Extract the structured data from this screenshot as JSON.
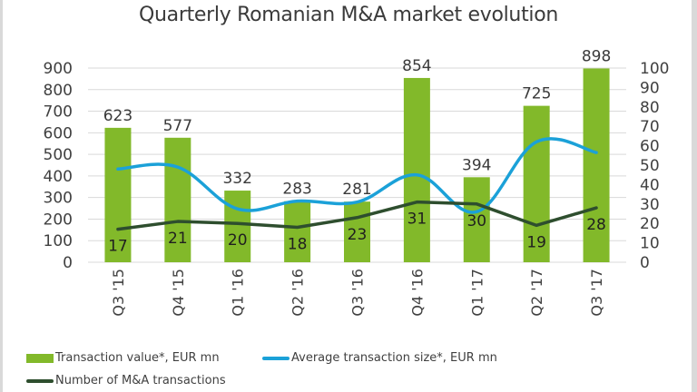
{
  "chart_data": {
    "type": "bar",
    "title": "Quarterly Romanian M&A market evolution",
    "categories": [
      "Q3 '15",
      "Q4 '15",
      "Q1 '16",
      "Q2 '16",
      "Q3 '16",
      "Q4 '16",
      "Q1 '17",
      "Q2 '17",
      "Q3 '17"
    ],
    "series": [
      {
        "name": "Transaction value*, EUR mn",
        "type": "bar",
        "axis": "left",
        "color": "#82b92a",
        "values": [
          623,
          577,
          332,
          283,
          281,
          854,
          394,
          725,
          898
        ]
      },
      {
        "name": "Average transaction size*, EUR mn",
        "type": "line",
        "axis": "right",
        "color": "#1ba1d8",
        "smooth": true,
        "values": [
          48,
          49,
          27.5,
          31.5,
          31,
          45,
          26,
          62,
          56.5
        ]
      },
      {
        "name": "Number of M&A transactions",
        "type": "line",
        "axis": "right",
        "color": "#2e4e2e",
        "values": [
          17,
          21,
          20,
          18,
          23,
          31,
          30,
          19,
          28
        ]
      }
    ],
    "y_left": {
      "ylim": [
        0,
        900
      ],
      "ticks": [
        "0",
        "100",
        "200",
        "300",
        "400",
        "500",
        "600",
        "700",
        "800",
        "900"
      ]
    },
    "y_right": {
      "ylim": [
        0,
        100
      ],
      "ticks": [
        "0",
        "10",
        "20",
        "30",
        "40",
        "50",
        "60",
        "70",
        "80",
        "90",
        "100"
      ]
    },
    "grid": true,
    "legend_position": "bottom",
    "bar_labels": [
      "623",
      "577",
      "332",
      "283",
      "281",
      "854",
      "394",
      "725",
      "898"
    ],
    "count_labels": [
      "17",
      "21",
      "20",
      "18",
      "23",
      "31",
      "30",
      "19",
      "28"
    ]
  },
  "legend": {
    "bar": "Transaction value*, EUR mn",
    "avg": "Average transaction size*, EUR mn",
    "count": "Number of M&A transactions"
  }
}
